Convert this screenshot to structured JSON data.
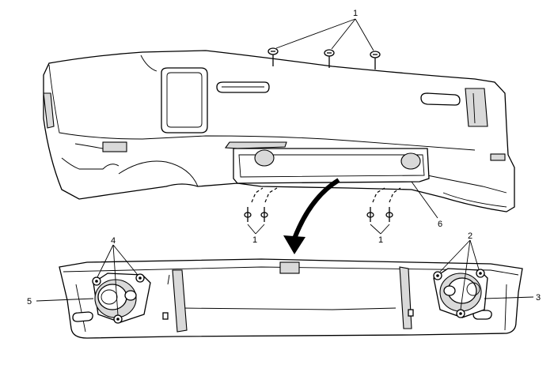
{
  "diagram": {
    "callouts": {
      "screws_top": "1",
      "screws_lower_left": "1",
      "screws_lower_right": "1",
      "fasteners_right": "2",
      "lamp_right": "3",
      "fasteners_left": "4",
      "lamp_left": "5",
      "fascia_panel": "6"
    }
  }
}
